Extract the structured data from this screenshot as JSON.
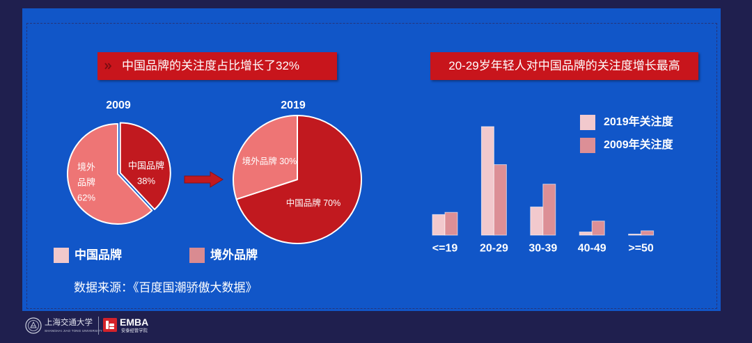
{
  "colors": {
    "background": "#1f1f4e",
    "panel": "#1156c8",
    "banner": "#c8151c"
  },
  "slide": {
    "banner_left": {
      "icon": "double-chevron-icon",
      "text": "中国品牌的关注度占比增长了32%"
    },
    "banner_right": {
      "text": "20-29岁年轻人对中国品牌的关注度增长最高"
    },
    "pie_legend": [
      {
        "label": "中国品牌",
        "color": "#f1c8cb"
      },
      {
        "label": "境外品牌",
        "color": "#d98b91"
      }
    ],
    "source": "数据来源：《百度国潮骄傲大数据》"
  },
  "chart_data": [
    {
      "type": "pie",
      "title": "2009",
      "slices": [
        {
          "value": 38,
          "label_lines": [
            "中国品牌",
            "38%"
          ],
          "color": "#c1191f",
          "exploded": true
        },
        {
          "value": 62,
          "label_lines": [
            "境外",
            "品牌",
            "62%"
          ],
          "color": "#ee7575"
        }
      ]
    },
    {
      "type": "pie",
      "title": "2019",
      "slices": [
        {
          "value": 70,
          "label_lines": [
            "中国品牌 70%"
          ],
          "color": "#c1191f"
        },
        {
          "value": 30,
          "label_lines": [
            "境外品牌 30%"
          ],
          "color": "#ee7575"
        }
      ]
    },
    {
      "type": "bar",
      "categories": [
        "<=19",
        "20-29",
        "30-39",
        "40-49",
        ">=50"
      ],
      "series": [
        {
          "name": "2019年关注度",
          "values": [
            19,
            100,
            26,
            3,
            1
          ],
          "color": "#f2c9cd"
        },
        {
          "name": "2009年关注度",
          "values": [
            21,
            65,
            47,
            13,
            4
          ],
          "color": "#dc8f96"
        }
      ],
      "grid": false,
      "legend": "top-right"
    }
  ],
  "footer": {
    "university_cn": "上海交通大学",
    "university_en": "SHANGHAI JIAO TONG UNIVERSITY",
    "program": "EMBA",
    "school": "安泰经管学院",
    "logos": [
      "sjtu-seal-icon",
      "antai-emba-logo-icon"
    ]
  }
}
